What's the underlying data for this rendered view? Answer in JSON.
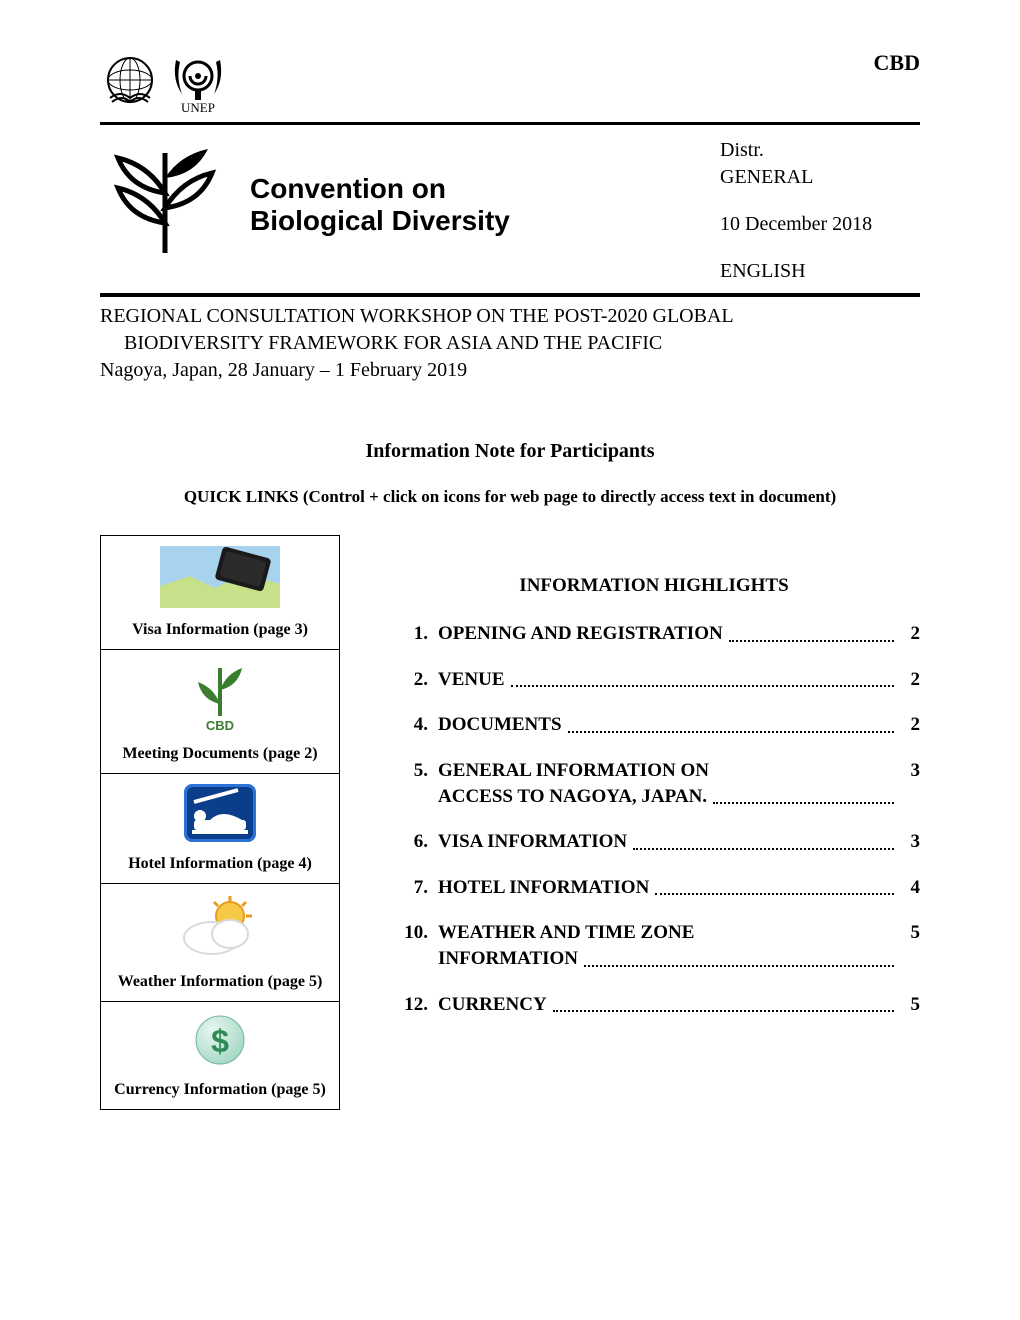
{
  "header": {
    "org_abbrev": "CBD",
    "unep_label": "UNEP",
    "convention_title_line1": "Convention on",
    "convention_title_line2": "Biological Diversity",
    "distr_label": "Distr.",
    "distr_value": "GENERAL",
    "date": "10 December 2018",
    "language": "ENGLISH"
  },
  "workshop": {
    "line1": "REGIONAL CONSULTATION WORKSHOP ON THE POST-2020 GLOBAL",
    "line2": "BIODIVERSITY FRAMEWORK FOR ASIA AND THE PACIFIC",
    "location_dates": "Nagoya, Japan, 28 January – 1 February 2019"
  },
  "subtitle": "Information Note for Participants",
  "quicklinks_hint": "QUICK LINKS (Control + click on icons for web page to directly access text in document)",
  "sidebar": {
    "items": [
      {
        "label": "Visa Information (page 3)",
        "icon": "passport-icon"
      },
      {
        "label": "Meeting Documents (page 2)",
        "icon": "cbd-leaf-icon",
        "icon_caption": "CBD"
      },
      {
        "label": "Hotel Information (page 4)",
        "icon": "hotel-icon"
      },
      {
        "label": "Weather Information (page 5)",
        "icon": "weather-icon"
      },
      {
        "label": "Currency Information (page 5)",
        "icon": "currency-icon"
      }
    ]
  },
  "toc": {
    "title": "INFORMATION HIGHLIGHTS",
    "items": [
      {
        "num": "1.",
        "text": "OPENING AND REGISTRATION",
        "page": "2",
        "dotted": true,
        "trailing_dots_after_text": true
      },
      {
        "num": "2.",
        "text": "VENUE",
        "page": "2",
        "dotted": true
      },
      {
        "num": "4.",
        "text": "DOCUMENTS",
        "page": "2",
        "dotted": true
      },
      {
        "num": "5.",
        "text_lines": [
          "GENERAL INFORMATION ON",
          "ACCESS TO NAGOYA, JAPAN."
        ],
        "page": "3",
        "dotted": true
      },
      {
        "num": "6.",
        "text": "VISA INFORMATION",
        "page": "3",
        "dotted": true
      },
      {
        "num": "7.",
        "text": "HOTEL INFORMATION",
        "page": "4",
        "dotted": true
      },
      {
        "num": "10.",
        "text_lines": [
          "WEATHER AND TIME ZONE",
          "INFORMATION"
        ],
        "page": "5",
        "dotted": true
      },
      {
        "num": "12.",
        "text": "CURRENCY",
        "page": "5",
        "dotted": true
      }
    ]
  },
  "colors": {
    "text": "#000000",
    "background": "#ffffff",
    "cbd_green": "#3a7d2f",
    "hotel_blue_dark": "#0b3e8a",
    "hotel_blue_light": "#2a72d4",
    "sun_yellow": "#f7c948",
    "sun_orange": "#e89b1c",
    "cloud_gray": "#d9d9d9",
    "currency_green": "#2e8b57",
    "currency_sphere": "#9fd6c2",
    "map_land": "#c7e08a",
    "map_sea": "#a7d3ef",
    "passport_black": "#1a1a1a"
  },
  "fontsizes": {
    "body": 20,
    "cbd_abbrev": 22,
    "conv_title": 28,
    "subtitle": 20,
    "quicklinks": 17,
    "sidebar_label": 16,
    "toc_title": 19,
    "toc_item": 19
  }
}
